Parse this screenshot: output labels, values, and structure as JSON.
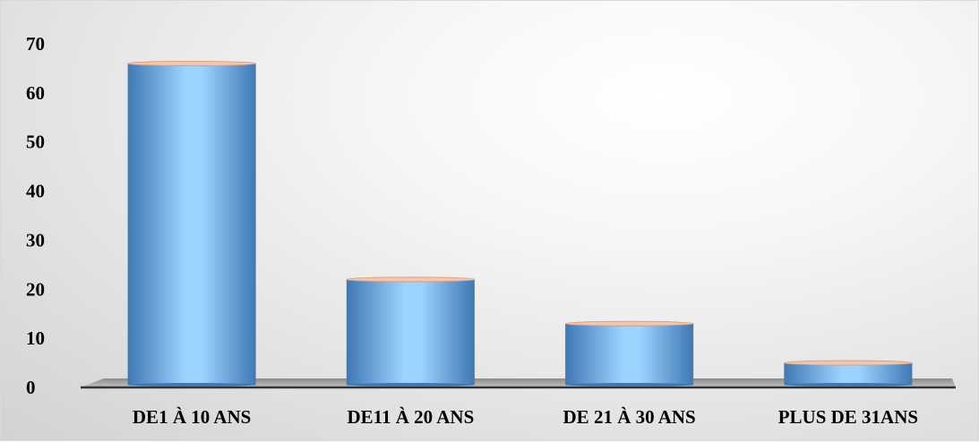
{
  "chart_data": {
    "type": "bar",
    "categories": [
      "DE1 À 10 ANS",
      "DE11 À 20 ANS",
      "DE 21 À 30 ANS",
      "PLUS DE 31ANS"
    ],
    "values": [
      66,
      22,
      13,
      5
    ],
    "ylim": [
      0,
      70
    ],
    "yticks": [
      "0",
      "10",
      "20",
      "30",
      "40",
      "50",
      "60",
      "70"
    ],
    "title": "",
    "xlabel": "",
    "ylabel": "",
    "grid": false,
    "legend": "none",
    "colors": {
      "bar_dark": "#3f78b4",
      "bar_light": "#9cd3ff",
      "bar_top": "#f2c7ad",
      "floor": "#b0b0b0"
    }
  }
}
